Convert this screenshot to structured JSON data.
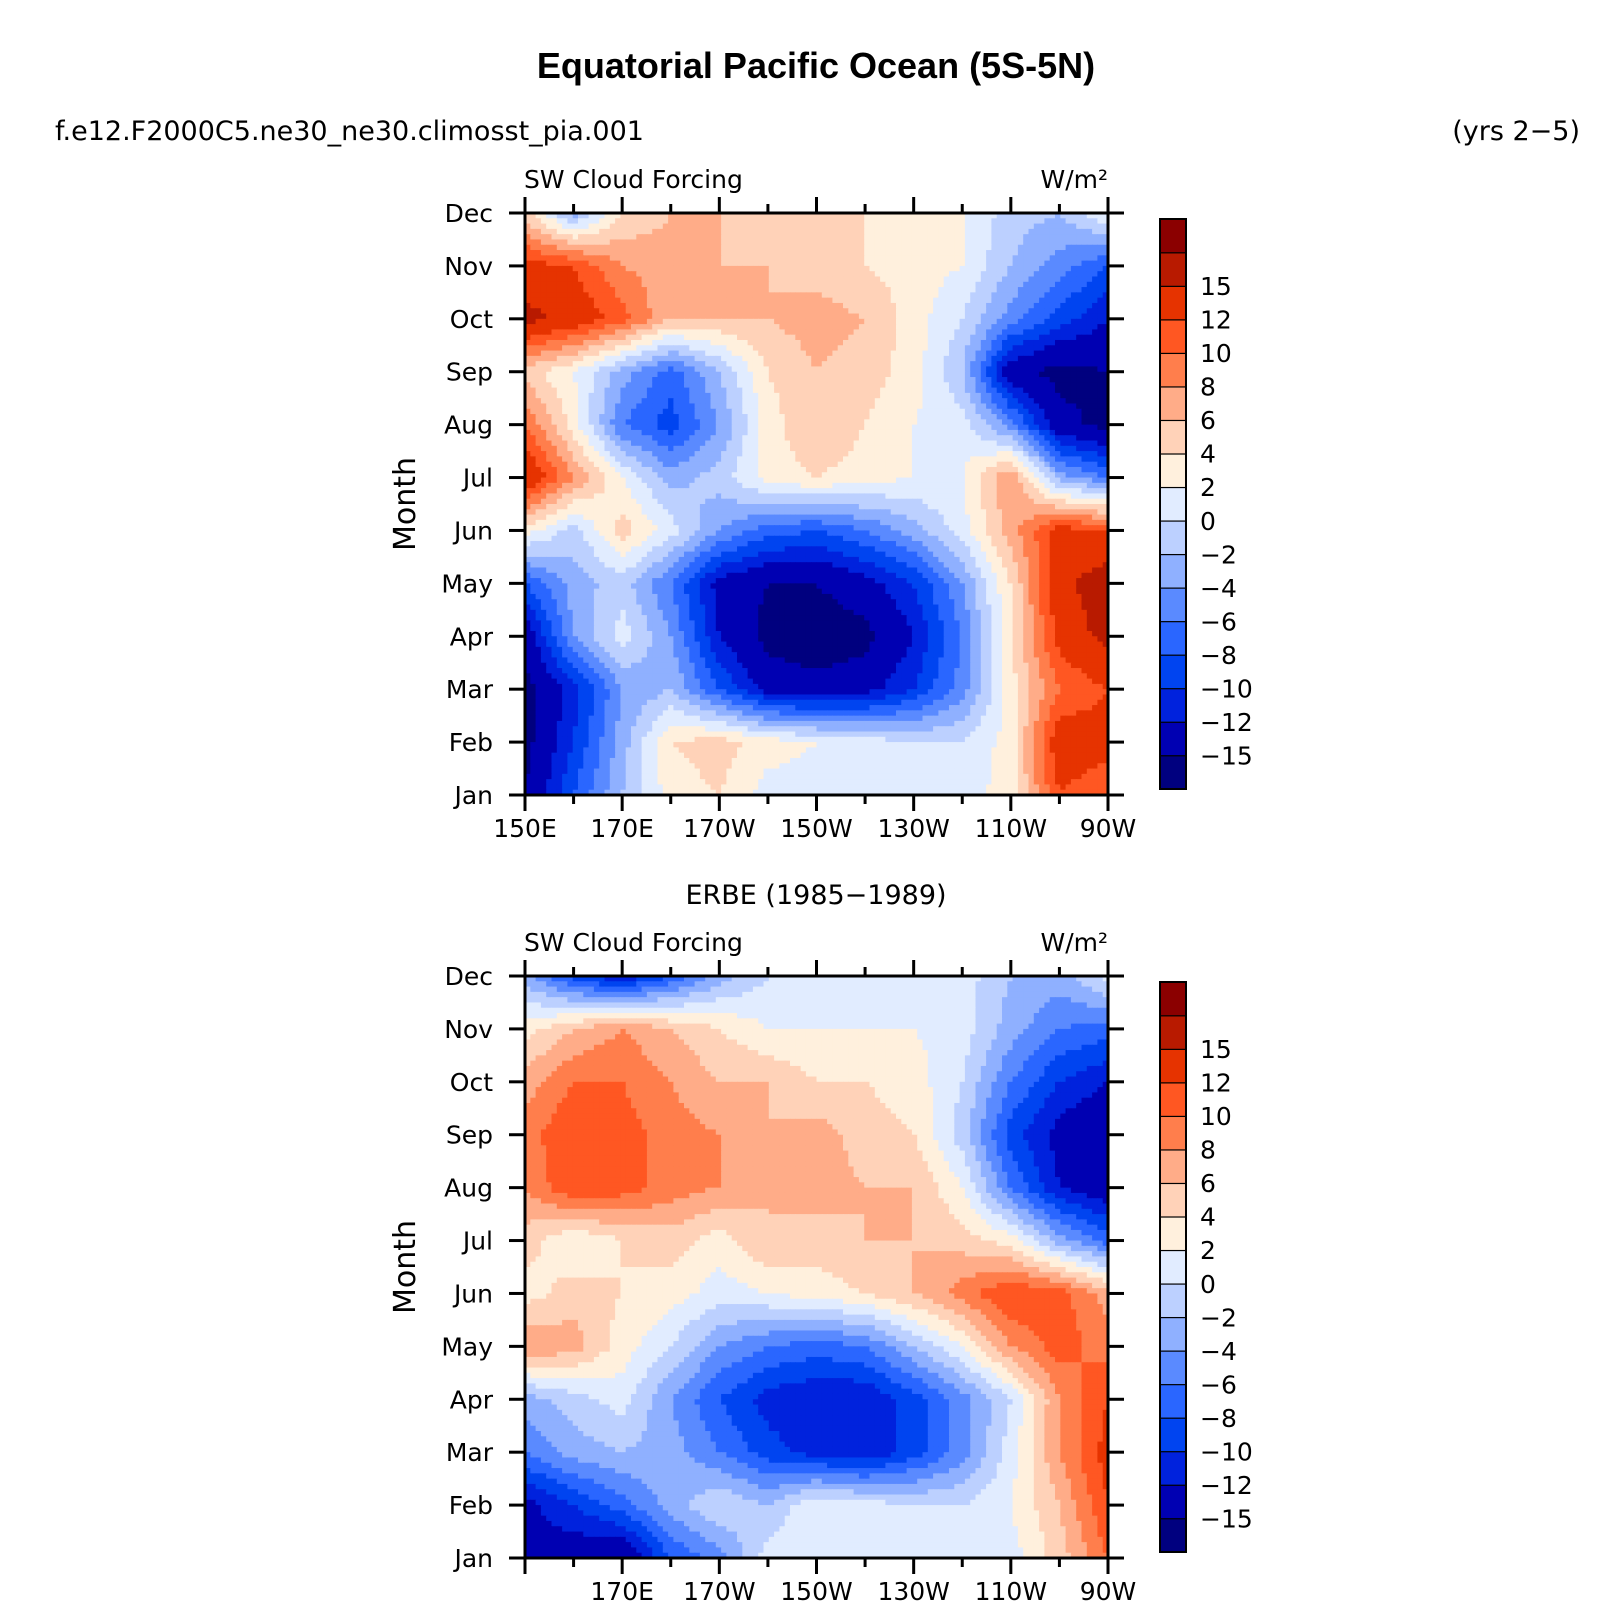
{
  "figure": {
    "title": "Equatorial Pacific Ocean (5S-5N)",
    "case_name": "f.e12.F2000C5.ne30_ne30.climosst_pia.001",
    "years": "(yrs 2−5)",
    "middle_caption": "ERBE (1985−1989)"
  },
  "colorbar": {
    "colors": [
      "#00007f",
      "#0000b2",
      "#0022dd",
      "#0044f0",
      "#2a66ff",
      "#5a8aff",
      "#8fb0ff",
      "#bcd0ff",
      "#e1ecff",
      "#fff0dd",
      "#ffd2b8",
      "#ffac88",
      "#ff7e4c",
      "#ff5722",
      "#e63300",
      "#b81a00",
      "#8b0000"
    ],
    "tick_labels": [
      "−15",
      "−12",
      "−10",
      "−8",
      "−6",
      "−4",
      "−2",
      "0",
      "2",
      "4",
      "6",
      "8",
      "10",
      "12",
      "15"
    ]
  },
  "chart_data": [
    {
      "type": "heatmap",
      "left_title": "SW Cloud Forcing",
      "right_title": "W/m²",
      "ylabel": "Month",
      "months": [
        "Jan",
        "Feb",
        "Mar",
        "Apr",
        "May",
        "Jun",
        "Jul",
        "Aug",
        "Sep",
        "Oct",
        "Nov",
        "Dec"
      ],
      "lon_ticks": [
        "150E",
        "170E",
        "170W",
        "150W",
        "130W",
        "110W",
        "90W"
      ],
      "lon_range": [
        150,
        270
      ],
      "levels": [
        -15,
        -12,
        -10,
        -8,
        -6,
        -4,
        -2,
        0,
        2,
        4,
        6,
        8,
        10,
        12,
        15
      ],
      "lons": [
        150,
        160,
        170,
        180,
        190,
        200,
        210,
        220,
        230,
        240,
        250,
        260,
        270
      ],
      "values": [
        [
          -15,
          -8,
          -2,
          3,
          4,
          1,
          1,
          1,
          1,
          1,
          3,
          12,
          10
        ],
        [
          -16,
          -10,
          -3,
          4,
          5,
          3,
          2,
          1,
          0,
          0,
          3,
          14,
          13
        ],
        [
          -16,
          -11,
          -4,
          -2,
          -8,
          -13,
          -14,
          -13,
          -10,
          -5,
          3,
          10,
          12
        ],
        [
          -14,
          -4,
          1,
          -4,
          -12,
          -16,
          -17,
          -16,
          -12,
          -6,
          4,
          13,
          16
        ],
        [
          -8,
          -3,
          -1,
          -6,
          -13,
          -15,
          -15,
          -13,
          -10,
          -4,
          4,
          14,
          17
        ],
        [
          3,
          -1,
          5,
          1,
          -4,
          -7,
          -8,
          -6,
          -3,
          1,
          7,
          13,
          12
        ],
        [
          15,
          8,
          2,
          -3,
          -1,
          3,
          4,
          3,
          2,
          2,
          8,
          -3,
          -6
        ],
        [
          10,
          3,
          -6,
          -9,
          -4,
          3,
          6,
          4,
          2,
          1,
          -5,
          -14,
          -16
        ],
        [
          5,
          2,
          -3,
          -7,
          -2,
          4,
          6,
          5,
          3,
          -2,
          -14,
          -16,
          -15
        ],
        [
          16,
          14,
          11,
          6,
          6,
          6,
          7,
          6,
          3,
          0,
          -5,
          -9,
          -12
        ],
        [
          13,
          12,
          8,
          7,
          6,
          6,
          5,
          4,
          3,
          2,
          -2,
          -5,
          -8
        ],
        [
          5,
          -3,
          4,
          6,
          6,
          5,
          5,
          4,
          3,
          2,
          -1,
          -2,
          2
        ]
      ]
    },
    {
      "type": "heatmap",
      "left_title": "SW Cloud Forcing",
      "right_title": "W/m²",
      "ylabel": "Month",
      "months": [
        "Jan",
        "Feb",
        "Mar",
        "Apr",
        "May",
        "Jun",
        "Jul",
        "Aug",
        "Sep",
        "Oct",
        "Nov",
        "Dec"
      ],
      "lon_ticks": [
        "170E",
        "170W",
        "150W",
        "130W",
        "110W",
        "90W"
      ],
      "lon_range": [
        150,
        270
      ],
      "levels": [
        -15,
        -12,
        -10,
        -8,
        -6,
        -4,
        -2,
        0,
        2,
        4,
        6,
        8,
        10,
        12,
        15
      ],
      "lons": [
        150,
        160,
        170,
        180,
        190,
        200,
        210,
        220,
        230,
        240,
        250,
        260,
        270
      ],
      "values": [
        [
          -12,
          -14,
          -15,
          -8,
          -5,
          1,
          2,
          1,
          0,
          0,
          1,
          5,
          10
        ],
        [
          -13,
          -10,
          -7,
          -3,
          0,
          -2,
          2,
          1,
          0,
          0,
          2,
          6,
          12
        ],
        [
          -6,
          -3,
          -2,
          -3,
          -6,
          -9,
          -11,
          -12,
          -9,
          -5,
          1,
          8,
          13
        ],
        [
          -3,
          -1,
          1,
          -4,
          -8,
          -11,
          -12,
          -12,
          -9,
          -5,
          0,
          8,
          12
        ],
        [
          8,
          7,
          3,
          0,
          -4,
          -6,
          -7,
          -6,
          -2,
          2,
          8,
          11,
          9
        ],
        [
          3,
          5,
          4,
          3,
          1,
          2,
          3,
          4,
          6,
          9,
          12,
          11,
          7
        ],
        [
          5,
          2,
          4,
          5,
          3,
          6,
          5,
          6,
          6,
          5,
          3,
          -3,
          -7
        ],
        [
          8,
          12,
          11,
          9,
          8,
          6,
          7,
          6,
          6,
          2,
          -6,
          -12,
          -14
        ],
        [
          9,
          12,
          11,
          9,
          8,
          6,
          7,
          5,
          4,
          -1,
          -9,
          -13,
          -15
        ],
        [
          7,
          10,
          10,
          8,
          6,
          6,
          4,
          4,
          3,
          0,
          -6,
          -10,
          -12
        ],
        [
          3,
          6,
          8,
          6,
          4,
          2,
          2,
          2,
          2,
          1,
          -3,
          -6,
          -7
        ],
        [
          -3,
          -9,
          -12,
          -8,
          -3,
          0,
          0,
          1,
          1,
          1,
          -2,
          -3,
          1
        ]
      ]
    }
  ]
}
